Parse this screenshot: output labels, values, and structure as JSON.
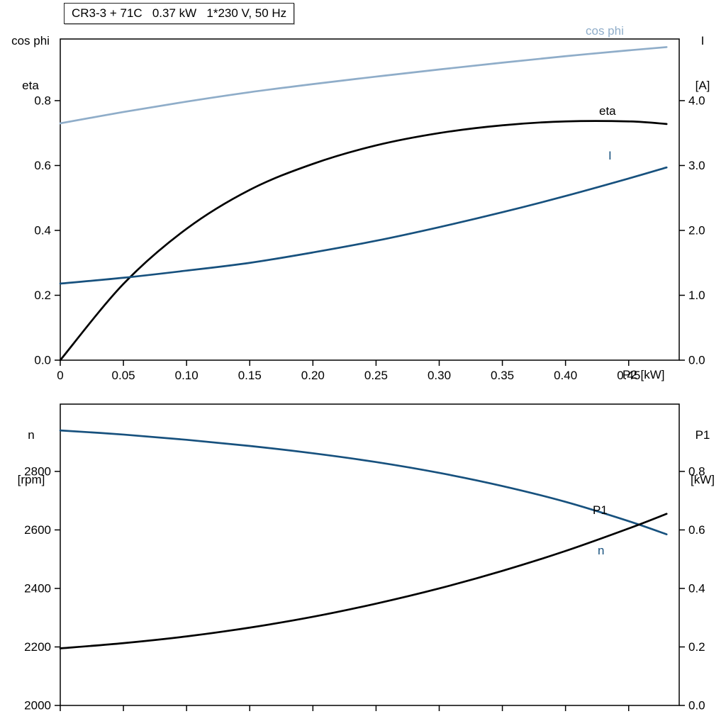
{
  "title_box": "CR3-3 + 71C   0.37 kW   1*230 V, 50 Hz",
  "labels": {
    "top_left_line1": "cos phi",
    "top_left_line2": "eta",
    "top_right_line1": "I",
    "top_right_line2": "[A]",
    "x_axis_label": "P2 [kW]",
    "bottom_left_line1": "n",
    "bottom_left_line2": "[rpm]",
    "bottom_right_line1": "P1",
    "bottom_right_line2": "[kW]"
  },
  "chart_data": [
    {
      "type": "line",
      "title": "CR3-3 + 71C 0.37 kW 1*230 V, 50 Hz",
      "xlabel": "P2 [kW]",
      "x_axis": {
        "min": 0,
        "max": 0.49,
        "ticks": [
          0,
          0.05,
          0.1,
          0.15,
          0.2,
          0.25,
          0.3,
          0.35,
          0.4,
          0.45
        ],
        "tick_labels": [
          "0",
          "0.05",
          "0.10",
          "0.15",
          "0.20",
          "0.25",
          "0.30",
          "0.35",
          "0.40",
          "0.45"
        ]
      },
      "left_axis": {
        "label": "cos phi / eta",
        "min": 0,
        "max": 0.99,
        "ticks": [
          0,
          0.2,
          0.4,
          0.6,
          0.8
        ],
        "tick_labels": [
          "0.0",
          "0.2",
          "0.4",
          "0.6",
          "0.8"
        ]
      },
      "right_axis": {
        "label": "I [A]",
        "min": 0,
        "max": 4.95,
        "ticks": [
          0,
          1,
          2,
          3,
          4
        ],
        "tick_labels": [
          "0.0",
          "1.0",
          "2.0",
          "3.0",
          "4.0"
        ]
      },
      "grid": false,
      "legend": "inline-labels",
      "series": [
        {
          "name": "cos phi",
          "axis": "left",
          "color": "#8fadc9",
          "x": [
            0,
            0.05,
            0.1,
            0.15,
            0.2,
            0.25,
            0.3,
            0.35,
            0.4,
            0.45,
            0.48
          ],
          "y": [
            0.73,
            0.765,
            0.797,
            0.826,
            0.851,
            0.874,
            0.896,
            0.917,
            0.937,
            0.955,
            0.965
          ]
        },
        {
          "name": "eta",
          "axis": "left",
          "color": "#000000",
          "x": [
            0,
            0.05,
            0.1,
            0.15,
            0.2,
            0.25,
            0.3,
            0.35,
            0.4,
            0.45,
            0.48
          ],
          "y": [
            0.0,
            0.235,
            0.405,
            0.525,
            0.605,
            0.662,
            0.7,
            0.724,
            0.736,
            0.736,
            0.728
          ]
        },
        {
          "name": "I",
          "axis": "right",
          "color": "#17517e",
          "x": [
            0,
            0.05,
            0.1,
            0.15,
            0.2,
            0.25,
            0.3,
            0.35,
            0.4,
            0.45,
            0.48
          ],
          "y": [
            1.18,
            1.27,
            1.38,
            1.5,
            1.66,
            1.84,
            2.05,
            2.28,
            2.53,
            2.8,
            2.97
          ]
        }
      ]
    },
    {
      "type": "line",
      "title": "",
      "xlabel": "",
      "x_axis": {
        "min": 0,
        "max": 0.49,
        "ticks": [
          0,
          0.05,
          0.1,
          0.15,
          0.2,
          0.25,
          0.3,
          0.35,
          0.4,
          0.45
        ],
        "tick_labels": [
          "",
          "",
          "",
          "",
          "",
          "",
          "",
          "",
          "",
          ""
        ]
      },
      "left_axis": {
        "label": "n [rpm]",
        "min": 2000,
        "max": 3030,
        "ticks": [
          2000,
          2200,
          2400,
          2600,
          2800
        ],
        "tick_labels": [
          "2000",
          "2200",
          "2400",
          "2600",
          "2800"
        ]
      },
      "right_axis": {
        "label": "P1 [kW]",
        "min": 0,
        "max": 1.03,
        "ticks": [
          0,
          0.2,
          0.4,
          0.6,
          0.8
        ],
        "tick_labels": [
          "0.0",
          "0.2",
          "0.4",
          "0.6",
          "0.8"
        ]
      },
      "grid": false,
      "legend": "inline-labels",
      "series": [
        {
          "name": "n",
          "axis": "left",
          "color": "#17517e",
          "x": [
            0,
            0.05,
            0.1,
            0.15,
            0.2,
            0.25,
            0.3,
            0.35,
            0.4,
            0.45,
            0.48
          ],
          "y": [
            2940,
            2926,
            2908,
            2887,
            2862,
            2832,
            2795,
            2750,
            2696,
            2630,
            2585
          ]
        },
        {
          "name": "P1",
          "axis": "right",
          "color": "#000000",
          "x": [
            0,
            0.05,
            0.1,
            0.15,
            0.2,
            0.25,
            0.3,
            0.35,
            0.4,
            0.45,
            0.48
          ],
          "y": [
            0.195,
            0.213,
            0.236,
            0.266,
            0.303,
            0.348,
            0.4,
            0.46,
            0.528,
            0.605,
            0.655
          ]
        }
      ]
    }
  ]
}
